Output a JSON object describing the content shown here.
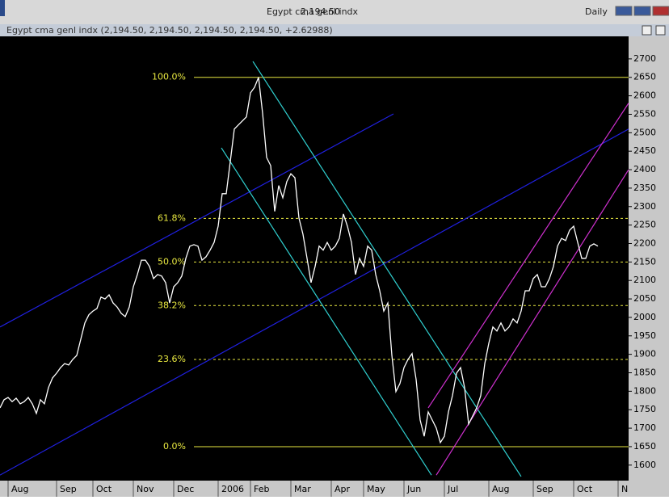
{
  "chart_data": {
    "type": "line",
    "title": "Egypt cma genl indx",
    "last_price": "2,194.50",
    "period": "Daily",
    "legend_text": "Egypt cma genl indx (2,194.50, 2,194.50, 2,194.50, 2,194.50, +2.62988)",
    "series": [
      {
        "color": "#ffffff",
        "values": [
          1755,
          1777,
          1783,
          1772,
          1781,
          1766,
          1772,
          1783,
          1766,
          1740,
          1777,
          1766,
          1810,
          1836,
          1849,
          1864,
          1875,
          1871,
          1886,
          1897,
          1941,
          1985,
          2007,
          2017,
          2024,
          2055,
          2050,
          2061,
          2039,
          2028,
          2011,
          2002,
          2028,
          2083,
          2116,
          2155,
          2155,
          2138,
          2105,
          2116,
          2112,
          2094,
          2039,
          2083,
          2094,
          2112,
          2160,
          2193,
          2197,
          2193,
          2155,
          2164,
          2182,
          2203,
          2247,
          2335,
          2335,
          2422,
          2510,
          2521,
          2532,
          2543,
          2608,
          2623,
          2650,
          2553,
          2433,
          2411,
          2287,
          2357,
          2324,
          2368,
          2389,
          2378,
          2269,
          2225,
          2160,
          2094,
          2138,
          2193,
          2182,
          2203,
          2182,
          2193,
          2214,
          2280,
          2247,
          2203,
          2116,
          2160,
          2138,
          2193,
          2182,
          2116,
          2072,
          2017,
          2039,
          1897,
          1799,
          1821,
          1864,
          1886,
          1902,
          1832,
          1722,
          1678,
          1744,
          1722,
          1700,
          1661,
          1678,
          1744,
          1788,
          1849,
          1864,
          1810,
          1711,
          1733,
          1755,
          1788,
          1875,
          1930,
          1974,
          1963,
          1985,
          1963,
          1974,
          1996,
          1985,
          2017,
          2072,
          2072,
          2105,
          2116,
          2083,
          2083,
          2105,
          2138,
          2193,
          2214,
          2208,
          2236,
          2247,
          2203,
          2160,
          2160,
          2193,
          2199,
          2193
        ]
      }
    ],
    "trendlines": [
      {
        "color": "#2020e0",
        "x": [
          0,
          97.4
        ],
        "values": [
          1974,
          2551
        ]
      },
      {
        "color": "#2020e0",
        "x": [
          0,
          155.6
        ],
        "values": [
          1573,
          2510
        ]
      },
      {
        "color": "#30d0d0",
        "x": [
          62.6,
          129
        ],
        "values": [
          2693,
          1569
        ]
      },
      {
        "color": "#30d0d0",
        "x": [
          54.8,
          106.8
        ],
        "values": [
          2459,
          1573
        ]
      },
      {
        "color": "#d030d0",
        "x": [
          106,
          155.6
        ],
        "values": [
          1755,
          2580
        ]
      },
      {
        "color": "#d030d0",
        "x": [
          108,
          155.6
        ],
        "values": [
          1573,
          2400
        ]
      }
    ],
    "fib_color": "#e8e840",
    "fib_start": 48,
    "fib_levels": [
      {
        "label": "100.0%",
        "value": 2650,
        "dashed": false
      },
      {
        "label": "61.8%",
        "value": 2268,
        "dashed": true
      },
      {
        "label": "50.0%",
        "value": 2150,
        "dashed": true
      },
      {
        "label": "38.2%",
        "value": 2032,
        "dashed": true
      },
      {
        "label": "23.6%",
        "value": 1886,
        "dashed": true
      },
      {
        "label": "0.0%",
        "value": 1650,
        "dashed": false
      }
    ],
    "xlim": [
      0,
      155.6
    ],
    "xticks": [
      {
        "value": 2,
        "label": "Aug"
      },
      {
        "value": 14,
        "label": "Sep"
      },
      {
        "value": 23,
        "label": "Oct"
      },
      {
        "value": 33,
        "label": "Nov"
      },
      {
        "value": 43,
        "label": "Dec"
      },
      {
        "value": 54,
        "label": "2006"
      },
      {
        "value": 62,
        "label": "Feb"
      },
      {
        "value": 72,
        "label": "Mar"
      },
      {
        "value": 82,
        "label": "Apr"
      },
      {
        "value": 90,
        "label": "May"
      },
      {
        "value": 100,
        "label": "Jun"
      },
      {
        "value": 110,
        "label": "Jul"
      },
      {
        "value": 121,
        "label": "Aug"
      },
      {
        "value": 132,
        "label": "Sep"
      },
      {
        "value": 142,
        "label": "Oct"
      },
      {
        "value": 153,
        "label": "N"
      }
    ],
    "ylim": [
      1558,
      2761
    ],
    "yticks": [
      1600,
      1650,
      1700,
      1750,
      1800,
      1850,
      1900,
      1950,
      2000,
      2050,
      2100,
      2150,
      2200,
      2250,
      2300,
      2350,
      2400,
      2450,
      2500,
      2550,
      2600,
      2650,
      2700
    ]
  }
}
